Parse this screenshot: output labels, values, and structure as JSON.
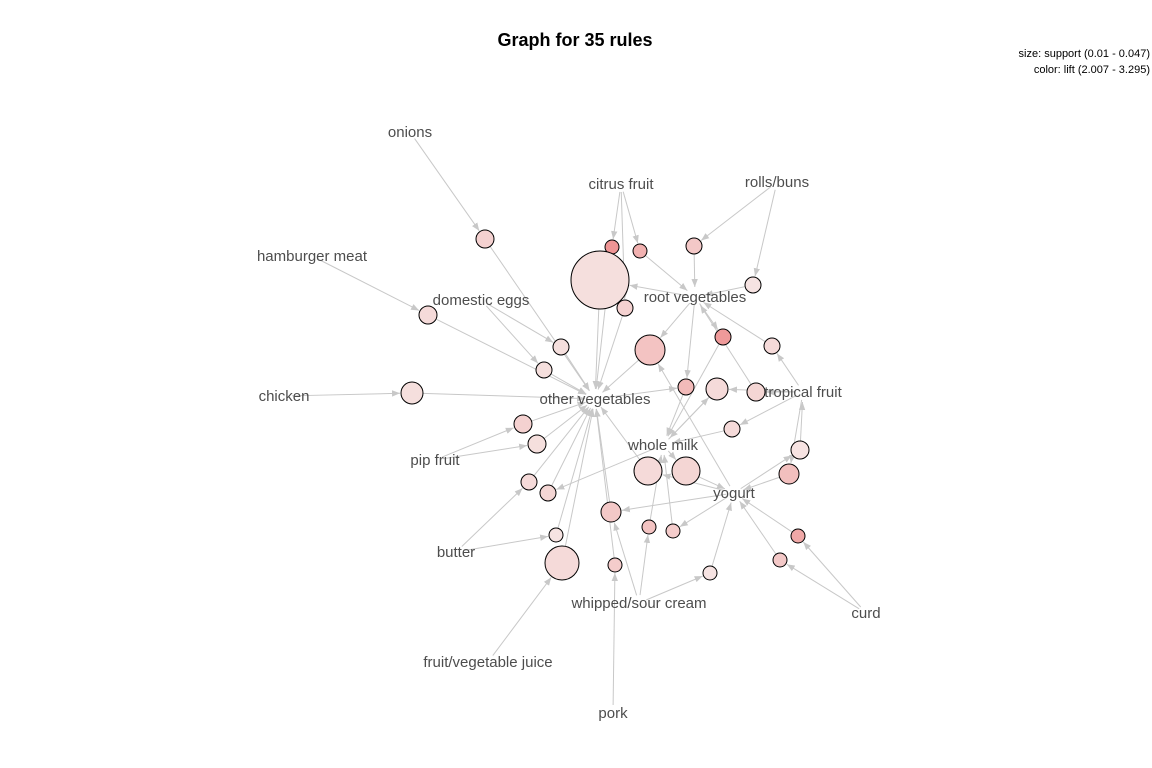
{
  "title": "Graph for 35 rules",
  "legend": {
    "size": "size: support (0.01 - 0.047)",
    "color": "color: lift (2.007 - 3.295)"
  },
  "items": [
    {
      "id": "onions",
      "label": "onions"
    },
    {
      "id": "citrus",
      "label": "citrus fruit"
    },
    {
      "id": "rolls",
      "label": "rolls/buns"
    },
    {
      "id": "hamburger",
      "label": "hamburger meat"
    },
    {
      "id": "eggs",
      "label": "domestic eggs"
    },
    {
      "id": "root",
      "label": "root vegetables"
    },
    {
      "id": "chicken",
      "label": "chicken"
    },
    {
      "id": "other",
      "label": "other vegetables"
    },
    {
      "id": "tropical",
      "label": "tropical fruit"
    },
    {
      "id": "milk",
      "label": "whole milk"
    },
    {
      "id": "pip",
      "label": "pip fruit"
    },
    {
      "id": "yogurt",
      "label": "yogurt"
    },
    {
      "id": "butter",
      "label": "butter"
    },
    {
      "id": "whipped",
      "label": "whipped/sour cream"
    },
    {
      "id": "curd",
      "label": "curd"
    },
    {
      "id": "juice",
      "label": "fruit/vegetable juice"
    },
    {
      "id": "pork",
      "label": "pork"
    }
  ],
  "colors": {
    "edge": "#c8c8c8",
    "node_low": "#f6e8e6",
    "node_high": "#ee8c8c",
    "label": "#4d4d4d"
  }
}
